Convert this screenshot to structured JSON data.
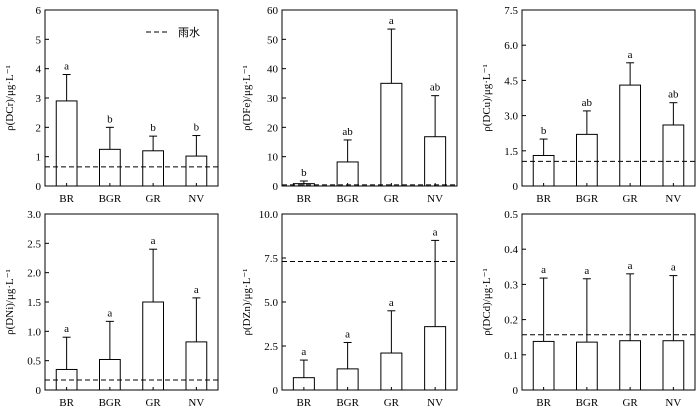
{
  "legend_label": "雨水",
  "chart_data": [
    {
      "type": "bar",
      "ylabel": "ρ(DCr)/μg·L⁻¹",
      "ylim": [
        0,
        6
      ],
      "yticks": [
        "0",
        "1",
        "2",
        "3",
        "4",
        "5",
        "6"
      ],
      "ytick_values": [
        0,
        1,
        2,
        3,
        4,
        5,
        6
      ],
      "categories": [
        "BR",
        "BGR",
        "GR",
        "NV"
      ],
      "values": [
        2.9,
        1.25,
        1.2,
        1.02
      ],
      "errors": [
        0.9,
        0.75,
        0.5,
        0.7
      ],
      "significance": [
        "a",
        "b",
        "b",
        "b"
      ],
      "reference_line": 0.65,
      "legend": "top-right"
    },
    {
      "type": "bar",
      "ylabel": "ρ(DFe)/μg·L⁻¹",
      "ylim": [
        0,
        60
      ],
      "yticks": [
        "0",
        "10",
        "20",
        "30",
        "40",
        "50",
        "60"
      ],
      "ytick_values": [
        0,
        10,
        20,
        30,
        40,
        50,
        60
      ],
      "categories": [
        "BR",
        "BGR",
        "GR",
        "NV"
      ],
      "values": [
        0.8,
        8.2,
        35,
        16.8
      ],
      "errors": [
        0.9,
        7.5,
        18.5,
        14
      ],
      "significance": [
        "b",
        "ab",
        "a",
        "ab"
      ],
      "reference_line": 0.4
    },
    {
      "type": "bar",
      "ylabel": "ρ(DCu)/μg·L⁻¹",
      "ylim": [
        0,
        7.5
      ],
      "yticks": [
        "0",
        "1.5",
        "3.0",
        "4.5",
        "6.0",
        "7.5"
      ],
      "ytick_values": [
        0,
        1.5,
        3.0,
        4.5,
        6.0,
        7.5
      ],
      "categories": [
        "BR",
        "BGR",
        "GR",
        "NV"
      ],
      "values": [
        1.3,
        2.2,
        4.3,
        2.6
      ],
      "errors": [
        0.7,
        1.0,
        0.95,
        0.95
      ],
      "significance": [
        "b",
        "ab",
        "a",
        "ab"
      ],
      "reference_line": 1.05
    },
    {
      "type": "bar",
      "ylabel": "ρ(DNi)/μg·L⁻¹",
      "ylim": [
        0,
        3.0
      ],
      "yticks": [
        "0",
        "0.5",
        "1.0",
        "1.5",
        "2.0",
        "2.5",
        "3.0"
      ],
      "ytick_values": [
        0,
        0.5,
        1.0,
        1.5,
        2.0,
        2.5,
        3.0
      ],
      "categories": [
        "BR",
        "BGR",
        "GR",
        "NV"
      ],
      "values": [
        0.35,
        0.52,
        1.5,
        0.82
      ],
      "errors": [
        0.55,
        0.65,
        0.9,
        0.75
      ],
      "significance": [
        "a",
        "a",
        "a",
        "a"
      ],
      "reference_line": 0.17
    },
    {
      "type": "bar",
      "ylabel": "ρ(DZn)/μg·L⁻¹",
      "ylim": [
        0,
        10.0
      ],
      "yticks": [
        "0",
        "2.5",
        "5.0",
        "7.5",
        "10.0"
      ],
      "ytick_values": [
        0,
        2.5,
        5.0,
        7.5,
        10.0
      ],
      "categories": [
        "BR",
        "BGR",
        "GR",
        "NV"
      ],
      "values": [
        0.7,
        1.2,
        2.1,
        3.6
      ],
      "errors": [
        1.0,
        1.5,
        2.4,
        4.9
      ],
      "significance": [
        "a",
        "a",
        "a",
        "a"
      ],
      "reference_line": 7.3
    },
    {
      "type": "bar",
      "ylabel": "ρ(DCd)/μg·L⁻¹",
      "ylim": [
        0,
        0.5
      ],
      "yticks": [
        "0",
        "0.1",
        "0.2",
        "0.3",
        "0.4",
        "0.5"
      ],
      "ytick_values": [
        0,
        0.1,
        0.2,
        0.3,
        0.4,
        0.5
      ],
      "categories": [
        "BR",
        "BGR",
        "GR",
        "NV"
      ],
      "values": [
        0.138,
        0.136,
        0.14,
        0.14
      ],
      "errors": [
        0.18,
        0.18,
        0.19,
        0.185
      ],
      "significance": [
        "a",
        "a",
        "a",
        "a"
      ],
      "reference_line": 0.157
    }
  ]
}
